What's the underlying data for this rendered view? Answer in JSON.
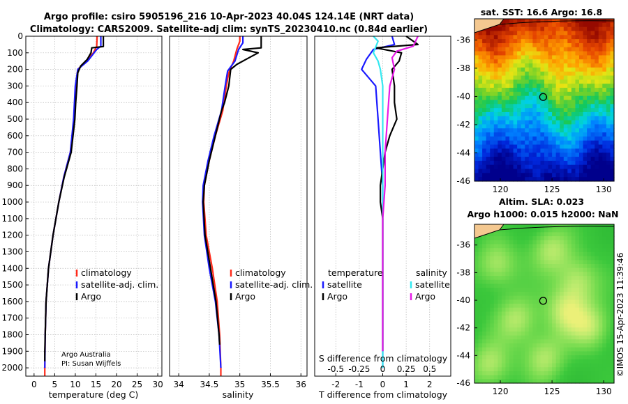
{
  "title_line1": "Argo profile: csiro 5905196_216 10-Apr-2023 40.04S 124.14E (NRT data)",
  "title_line2": "Climatology: CARS2009. Satellite-adj clim: synTS_20230410.nc (0.84d earlier)",
  "credits": [
    "Argo Australia",
    "PI: Susan Wijffels"
  ],
  "watermark": "©IMOS 15-Apr-2023 11:39:46",
  "colors": {
    "climatology": "#ff2a1a",
    "satellite": "#1a1aff",
    "argo": "#000000",
    "sal_satellite": "#33e8f0",
    "sal_argo": "#e61ae6"
  },
  "chart_data": [
    {
      "type": "line",
      "id": "temperature",
      "xlabel": "temperature (deg C)",
      "ylabel": "",
      "xlim": [
        -2,
        31
      ],
      "ylim": [
        2050,
        0
      ],
      "xticks": [
        0,
        5,
        10,
        15,
        20,
        25,
        30
      ],
      "yticks": [
        0,
        100,
        200,
        300,
        400,
        500,
        600,
        700,
        800,
        900,
        1000,
        1100,
        1200,
        1300,
        1400,
        1500,
        1600,
        1700,
        1800,
        1900,
        2000
      ],
      "grid": true,
      "legend": [
        "climatology",
        "satellite-adj. clim.",
        "Argo"
      ],
      "series": [
        {
          "name": "climatology",
          "color": "#ff2a1a",
          "points": [
            [
              15.3,
              0
            ],
            [
              15.2,
              60
            ],
            [
              14.4,
              100
            ],
            [
              12.6,
              150
            ],
            [
              10.6,
              200
            ],
            [
              10.1,
              300
            ],
            [
              9.7,
              500
            ],
            [
              8.8,
              700
            ],
            [
              7.2,
              850
            ],
            [
              6.0,
              1000
            ],
            [
              4.6,
              1200
            ],
            [
              3.5,
              1400
            ],
            [
              2.9,
              1600
            ],
            [
              2.7,
              1800
            ],
            [
              2.6,
              2000
            ],
            [
              2.6,
              2050
            ]
          ]
        },
        {
          "name": "satellite-adj. clim.",
          "color": "#1a1aff",
          "points": [
            [
              16.2,
              0
            ],
            [
              16.2,
              60
            ],
            [
              15.2,
              80
            ],
            [
              13.0,
              150
            ],
            [
              10.6,
              200
            ],
            [
              10.0,
              300
            ],
            [
              9.6,
              500
            ],
            [
              8.8,
              700
            ],
            [
              7.2,
              850
            ],
            [
              6.0,
              1000
            ],
            [
              4.6,
              1200
            ],
            [
              3.5,
              1400
            ],
            [
              2.9,
              1600
            ],
            [
              2.7,
              1800
            ],
            [
              2.6,
              2000
            ]
          ]
        },
        {
          "name": "Argo",
          "color": "#000000",
          "points": [
            [
              16.8,
              0
            ],
            [
              16.8,
              62
            ],
            [
              14.0,
              70
            ],
            [
              13.8,
              100
            ],
            [
              12.9,
              140
            ],
            [
              11.3,
              180
            ],
            [
              10.6,
              220
            ],
            [
              10.4,
              300
            ],
            [
              10.1,
              400
            ],
            [
              9.9,
              500
            ],
            [
              9.0,
              700
            ],
            [
              7.3,
              850
            ],
            [
              6.0,
              1000
            ],
            [
              4.6,
              1200
            ],
            [
              3.5,
              1400
            ],
            [
              2.9,
              1600
            ],
            [
              2.7,
              1800
            ],
            [
              2.6,
              1900
            ],
            [
              2.6,
              1960
            ]
          ]
        }
      ]
    },
    {
      "type": "line",
      "id": "salinity",
      "xlabel": "salinity",
      "xlim": [
        33.85,
        36.1
      ],
      "ylim": [
        2050,
        0
      ],
      "xticks": [
        34,
        34.5,
        35,
        35.5,
        36
      ],
      "xticklabels": [
        "34",
        "34.5",
        "35",
        "35.5",
        "36"
      ],
      "grid": true,
      "legend": [
        "climatology",
        "satellite-adj. clim.",
        "Argo"
      ],
      "series": [
        {
          "name": "climatology",
          "color": "#ff2a1a",
          "points": [
            [
              35.0,
              0
            ],
            [
              35.0,
              30
            ],
            [
              34.95,
              80
            ],
            [
              34.9,
              150
            ],
            [
              34.82,
              220
            ],
            [
              34.78,
              300
            ],
            [
              34.72,
              450
            ],
            [
              34.6,
              600
            ],
            [
              34.5,
              750
            ],
            [
              34.42,
              900
            ],
            [
              34.41,
              1000
            ],
            [
              34.45,
              1200
            ],
            [
              34.55,
              1400
            ],
            [
              34.63,
              1600
            ],
            [
              34.67,
              1800
            ],
            [
              34.69,
              2000
            ],
            [
              34.69,
              2050
            ]
          ]
        },
        {
          "name": "satellite-adj. clim.",
          "color": "#1a1aff",
          "points": [
            [
              35.05,
              0
            ],
            [
              35.05,
              40
            ],
            [
              34.98,
              80
            ],
            [
              34.92,
              150
            ],
            [
              34.8,
              210
            ],
            [
              34.76,
              300
            ],
            [
              34.7,
              450
            ],
            [
              34.58,
              600
            ],
            [
              34.48,
              750
            ],
            [
              34.4,
              900
            ],
            [
              34.39,
              1000
            ],
            [
              34.42,
              1200
            ],
            [
              34.5,
              1400
            ],
            [
              34.6,
              1600
            ],
            [
              34.66,
              1800
            ],
            [
              34.69,
              2000
            ]
          ]
        },
        {
          "name": "Argo",
          "color": "#000000",
          "points": [
            [
              35.35,
              0
            ],
            [
              35.35,
              70
            ],
            [
              35.05,
              80
            ],
            [
              35.3,
              100
            ],
            [
              35.1,
              140
            ],
            [
              34.95,
              170
            ],
            [
              34.85,
              200
            ],
            [
              34.82,
              300
            ],
            [
              34.75,
              400
            ],
            [
              34.7,
              450
            ],
            [
              34.6,
              600
            ],
            [
              34.5,
              750
            ],
            [
              34.42,
              900
            ],
            [
              34.4,
              1000
            ],
            [
              34.43,
              1200
            ],
            [
              34.52,
              1400
            ],
            [
              34.61,
              1600
            ],
            [
              34.66,
              1800
            ],
            [
              34.67,
              1860
            ]
          ]
        }
      ]
    },
    {
      "type": "line",
      "id": "difference",
      "xlabel": "T difference from climatology",
      "xlabel_top": "S difference from climatology",
      "xlim": [
        -2.9,
        2.9
      ],
      "ylim": [
        2050,
        0
      ],
      "xticks": [
        -2,
        -1,
        0,
        1,
        2
      ],
      "xticks_s": [
        "-0.5",
        "-0.25",
        "0",
        "0.25",
        "0.5"
      ],
      "grid": true,
      "legend_temperature_title": "temperature",
      "legend_salinity_title": "salinity",
      "legend_items": [
        "satellite",
        "Argo"
      ],
      "series": [
        {
          "name": "T satellite",
          "color": "#1a1aff",
          "points": [
            [
              0.4,
              0
            ],
            [
              0.5,
              50
            ],
            [
              -0.4,
              80
            ],
            [
              -0.7,
              140
            ],
            [
              -0.9,
              200
            ],
            [
              -0.3,
              300
            ],
            [
              -0.2,
              500
            ],
            [
              -0.1,
              700
            ],
            [
              0,
              900
            ],
            [
              0,
              1000
            ],
            [
              0,
              1200
            ],
            [
              0,
              1500
            ],
            [
              0,
              1800
            ],
            [
              0,
              2000
            ]
          ]
        },
        {
          "name": "T Argo",
          "color": "#000000",
          "points": [
            [
              1.0,
              0
            ],
            [
              1.5,
              50
            ],
            [
              -0.3,
              70
            ],
            [
              0.8,
              100
            ],
            [
              0.7,
              150
            ],
            [
              0.4,
              200
            ],
            [
              0.5,
              300
            ],
            [
              0.5,
              400
            ],
            [
              0.6,
              500
            ],
            [
              0.3,
              600
            ],
            [
              0.1,
              700
            ],
            [
              0,
              800
            ],
            [
              -0.1,
              900
            ],
            [
              -0.1,
              1000
            ],
            [
              0,
              1100
            ],
            [
              0,
              1300
            ],
            [
              0,
              1600
            ],
            [
              0,
              1900
            ]
          ]
        },
        {
          "name": "S satellite",
          "color": "#33e8f0",
          "points": [
            [
              -0.4,
              0
            ],
            [
              -0.2,
              30
            ],
            [
              -0.4,
              100
            ],
            [
              -0.2,
              150
            ],
            [
              -0.1,
              200
            ],
            [
              0,
              300
            ],
            [
              0,
              500
            ],
            [
              0,
              800
            ],
            [
              0,
              1200
            ],
            [
              0,
              1600
            ],
            [
              0,
              2000
            ]
          ]
        },
        {
          "name": "S Argo",
          "color": "#e61ae6",
          "points": [
            [
              1.5,
              0
            ],
            [
              1.3,
              60
            ],
            [
              0.6,
              90
            ],
            [
              0.4,
              130
            ],
            [
              0.5,
              200
            ],
            [
              0.3,
              300
            ],
            [
              0.2,
              500
            ],
            [
              0.1,
              700
            ],
            [
              0.1,
              900
            ],
            [
              0,
              1100
            ],
            [
              0,
              1400
            ],
            [
              0,
              1700
            ],
            [
              0,
              1900
            ]
          ]
        }
      ]
    },
    {
      "type": "heatmap",
      "id": "sst_map",
      "title": "sat. SST: 16.6 Argo: 16.8",
      "xlim": [
        117.5,
        131
      ],
      "ylim": [
        -46,
        -34.5
      ],
      "xticks": [
        120,
        125,
        130
      ],
      "yticks": [
        -36,
        -38,
        -40,
        -42,
        -44,
        -46
      ],
      "marker": {
        "lon": 124.14,
        "lat": -40.04
      }
    },
    {
      "type": "heatmap",
      "id": "sla_map",
      "title_line1": "Altim. SLA: 0.023",
      "title_line2": "Argo h1000: 0.015 h2000: NaN",
      "xlim": [
        117.5,
        131
      ],
      "ylim": [
        -46,
        -34.5
      ],
      "xticks": [
        120,
        125,
        130
      ],
      "yticks": [
        -36,
        -38,
        -40,
        -42,
        -44,
        -46
      ],
      "marker": {
        "lon": 124.14,
        "lat": -40.04
      }
    }
  ]
}
